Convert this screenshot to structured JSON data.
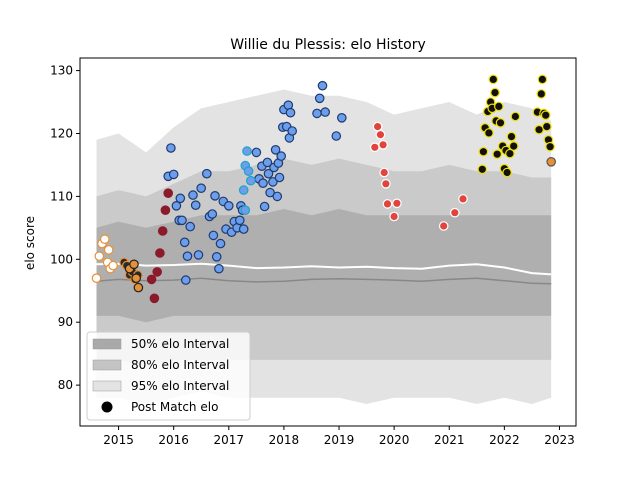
{
  "chart_data": {
    "type": "scatter",
    "title": "Willie du Plessis: elo History",
    "xlabel": "",
    "ylabel": "elo score",
    "xlim": [
      2014.3,
      2023.3
    ],
    "ylim": [
      73.5,
      132.0
    ],
    "x_ticks": [
      2015,
      2016,
      2017,
      2018,
      2019,
      2020,
      2021,
      2022,
      2023
    ],
    "y_ticks": [
      80,
      90,
      100,
      110,
      120,
      130
    ],
    "grid": false,
    "legend_position": "lower-left",
    "legend": [
      {
        "label": "50% elo Interval",
        "color": "#a9a9a9",
        "kind": "patch"
      },
      {
        "label": "80% elo Interval",
        "color": "#c4c4c4",
        "kind": "patch"
      },
      {
        "label": "95% elo Interval",
        "color": "#e3e3e3",
        "kind": "patch"
      },
      {
        "label": "Post Match elo",
        "color": "#000000",
        "kind": "marker"
      }
    ],
    "bands": {
      "x": [
        2014.6,
        2015.0,
        2015.5,
        2016.0,
        2016.5,
        2017.0,
        2017.5,
        2018.0,
        2018.5,
        2019.0,
        2019.5,
        2020.0,
        2020.5,
        2021.0,
        2021.5,
        2022.0,
        2022.5,
        2022.85
      ],
      "p95_low": [
        78,
        78,
        77,
        78,
        79,
        78,
        78,
        78,
        78,
        78,
        77,
        78,
        78,
        78,
        77,
        78,
        77,
        78
      ],
      "p95_high": [
        119,
        120,
        117,
        121,
        124,
        125,
        126,
        127,
        126,
        126,
        125,
        123,
        124,
        125,
        123,
        125,
        124,
        122
      ],
      "p80_low": [
        84,
        84,
        83,
        84,
        84,
        84,
        84,
        84,
        84,
        84,
        84,
        84,
        84,
        84,
        84,
        84,
        84,
        84
      ],
      "p80_high": [
        110,
        111,
        110,
        112,
        114,
        114,
        115,
        116,
        115,
        116,
        115,
        114,
        114,
        115,
        114,
        114,
        113,
        113
      ],
      "p50_low": [
        91,
        91,
        90,
        91,
        91,
        91,
        91,
        91,
        91,
        91,
        91,
        91,
        91,
        91,
        91,
        91,
        91,
        91
      ],
      "p50_high": [
        105,
        106,
        105,
        106,
        107,
        107,
        107,
        108,
        107,
        108,
        107,
        107,
        107,
        107,
        107,
        107,
        107,
        107
      ],
      "median": [
        96.5,
        96.8,
        96.6,
        96.7,
        97.0,
        96.6,
        96.4,
        96.5,
        96.8,
        96.9,
        96.8,
        96.7,
        96.5,
        96.8,
        97.0,
        96.6,
        96.2,
        96.1
      ],
      "mean": [
        99.2,
        99.3,
        99.0,
        99.1,
        99.3,
        99.0,
        98.6,
        98.7,
        98.9,
        98.7,
        98.8,
        98.6,
        98.5,
        99.0,
        99.2,
        98.7,
        97.8,
        97.6
      ]
    },
    "series": [
      {
        "color": "#ffffff",
        "edge": "#e69138",
        "points": [
          [
            2014.6,
            97.0
          ],
          [
            2014.65,
            100.5
          ],
          [
            2014.7,
            102.5
          ],
          [
            2014.75,
            103.2
          ],
          [
            2014.8,
            99.5
          ],
          [
            2014.82,
            101.5
          ],
          [
            2014.85,
            98.5
          ],
          [
            2014.9,
            99.0
          ]
        ]
      },
      {
        "color": "#2b2b2b",
        "edge": "#e69138",
        "points": [
          [
            2015.1,
            99.5
          ],
          [
            2015.15,
            99.0
          ],
          [
            2015.2,
            97.5
          ],
          [
            2015.25,
            98.0
          ],
          [
            2015.3,
            96.8
          ],
          [
            2015.35,
            97.5
          ]
        ]
      },
      {
        "color": "#e69138",
        "edge": "#222222",
        "points": [
          [
            2015.2,
            98.5
          ],
          [
            2015.28,
            99.2
          ],
          [
            2015.32,
            97.0
          ],
          [
            2015.36,
            95.5
          ]
        ]
      },
      {
        "color": "#8b1a2b",
        "edge": "#8b1a2b",
        "points": [
          [
            2015.6,
            96.8
          ],
          [
            2015.65,
            93.8
          ],
          [
            2015.7,
            98.0
          ],
          [
            2015.75,
            101.0
          ],
          [
            2015.8,
            104.5
          ],
          [
            2015.85,
            107.8
          ],
          [
            2015.9,
            110.5
          ]
        ]
      },
      {
        "color": "#6d9eeb",
        "edge": "#1f3b6e",
        "points": [
          [
            2015.9,
            113.2
          ],
          [
            2015.95,
            117.7
          ],
          [
            2016.0,
            113.5
          ],
          [
            2016.05,
            108.5
          ],
          [
            2016.1,
            106.2
          ],
          [
            2016.12,
            109.7
          ],
          [
            2016.15,
            106.2
          ],
          [
            2016.2,
            102.7
          ],
          [
            2016.22,
            96.7
          ],
          [
            2016.25,
            100.5
          ],
          [
            2016.3,
            105.2
          ],
          [
            2016.35,
            110.2
          ],
          [
            2016.4,
            108.6
          ],
          [
            2016.45,
            100.7
          ],
          [
            2016.5,
            111.3
          ],
          [
            2016.6,
            113.6
          ],
          [
            2016.65,
            106.8
          ],
          [
            2016.7,
            107.2
          ],
          [
            2016.72,
            103.8
          ],
          [
            2016.75,
            110.1
          ],
          [
            2016.78,
            100.4
          ],
          [
            2016.82,
            98.5
          ],
          [
            2016.85,
            102.5
          ],
          [
            2016.9,
            109.2
          ],
          [
            2016.95,
            104.8
          ],
          [
            2017.0,
            108.5
          ],
          [
            2017.05,
            104.3
          ],
          [
            2017.1,
            106.0
          ],
          [
            2017.15,
            105.0
          ],
          [
            2017.2,
            106.2
          ],
          [
            2017.22,
            108.5
          ],
          [
            2017.25,
            107.8
          ],
          [
            2017.27,
            104.8
          ]
        ]
      },
      {
        "color": "#6d9eeb",
        "edge": "#1f3b6e",
        "points": [
          [
            2017.5,
            117.0
          ],
          [
            2017.55,
            112.8
          ],
          [
            2017.6,
            114.8
          ],
          [
            2017.62,
            112.1
          ],
          [
            2017.65,
            108.4
          ],
          [
            2017.7,
            115.4
          ],
          [
            2017.72,
            113.6
          ],
          [
            2017.75,
            110.6
          ],
          [
            2017.8,
            112.3
          ],
          [
            2017.82,
            114.6
          ],
          [
            2017.85,
            117.4
          ],
          [
            2017.88,
            110.0
          ],
          [
            2017.9,
            115.3
          ],
          [
            2017.92,
            113.0
          ],
          [
            2017.95,
            116.4
          ],
          [
            2017.98,
            121.0
          ],
          [
            2018.0,
            123.8
          ],
          [
            2018.05,
            121.1
          ],
          [
            2018.08,
            124.5
          ],
          [
            2018.1,
            119.3
          ],
          [
            2018.12,
            123.3
          ],
          [
            2018.15,
            120.4
          ],
          [
            2018.6,
            123.2
          ],
          [
            2018.65,
            125.6
          ],
          [
            2018.7,
            127.6
          ],
          [
            2018.75,
            123.4
          ],
          [
            2018.95,
            119.6
          ],
          [
            2019.05,
            122.5
          ]
        ]
      },
      {
        "color": "#6d9eeb",
        "edge": "#1fa3c9",
        "points": [
          [
            2017.27,
            111.0
          ],
          [
            2017.3,
            114.9
          ],
          [
            2017.33,
            117.2
          ],
          [
            2017.36,
            114.0
          ],
          [
            2017.4,
            112.5
          ],
          [
            2017.3,
            107.8
          ]
        ]
      },
      {
        "color": "#e0443c",
        "edge": "#ffffff",
        "points": [
          [
            2019.65,
            117.8
          ],
          [
            2019.7,
            121.1
          ],
          [
            2019.75,
            119.8
          ],
          [
            2019.8,
            118.2
          ],
          [
            2019.82,
            113.8
          ],
          [
            2019.85,
            112.0
          ],
          [
            2019.88,
            108.8
          ],
          [
            2020.0,
            106.8
          ],
          [
            2020.05,
            108.9
          ],
          [
            2020.9,
            105.3
          ],
          [
            2021.1,
            107.4
          ],
          [
            2021.25,
            109.6
          ]
        ]
      },
      {
        "color": "#111111",
        "edge": "#f0e000",
        "points": [
          [
            2021.6,
            114.3
          ],
          [
            2021.62,
            117.1
          ],
          [
            2021.65,
            120.9
          ],
          [
            2021.7,
            123.5
          ],
          [
            2021.72,
            120.1
          ],
          [
            2021.75,
            125.0
          ],
          [
            2021.78,
            124.0
          ],
          [
            2021.8,
            128.6
          ],
          [
            2021.83,
            126.5
          ],
          [
            2021.85,
            122.0
          ],
          [
            2021.87,
            116.7
          ],
          [
            2021.9,
            124.3
          ],
          [
            2021.93,
            121.7
          ],
          [
            2021.97,
            118.0
          ],
          [
            2022.0,
            114.4
          ],
          [
            2022.03,
            117.3
          ],
          [
            2022.05,
            113.8
          ],
          [
            2022.1,
            116.8
          ],
          [
            2022.13,
            119.5
          ],
          [
            2022.17,
            118.0
          ],
          [
            2022.2,
            122.7
          ],
          [
            2022.6,
            123.4
          ],
          [
            2022.63,
            120.6
          ],
          [
            2022.67,
            126.3
          ],
          [
            2022.69,
            128.6
          ],
          [
            2022.72,
            123.2
          ],
          [
            2022.75,
            122.9
          ],
          [
            2022.77,
            121.1
          ],
          [
            2022.8,
            119.0
          ],
          [
            2022.83,
            117.9
          ]
        ]
      },
      {
        "color": "#e69138",
        "edge": "#555555",
        "points": [
          [
            2022.85,
            115.5
          ]
        ]
      }
    ]
  }
}
